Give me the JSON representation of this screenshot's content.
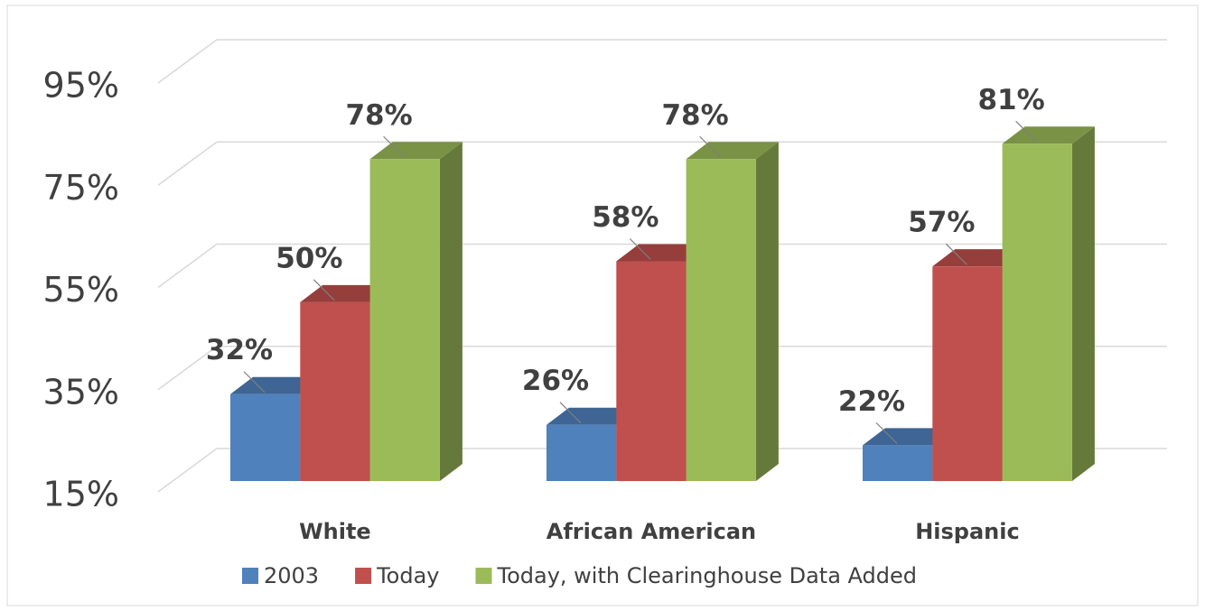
{
  "chart_data": {
    "type": "bar3d",
    "categories": [
      "White",
      "African American",
      "Hispanic"
    ],
    "series": [
      {
        "name": "2003",
        "color": "#4f81bd",
        "values": [
          32,
          26,
          22
        ],
        "value_labels": [
          "32%",
          "26%",
          "22%"
        ]
      },
      {
        "name": "Today",
        "color": "#c0504d",
        "values": [
          50,
          58,
          57
        ],
        "value_labels": [
          "50%",
          "58%",
          "57%"
        ]
      },
      {
        "name": "Today, with Clearinghouse Data Added",
        "color": "#9bbb59",
        "values": [
          78,
          78,
          81
        ],
        "value_labels": [
          "78%",
          "78%",
          "81%"
        ]
      }
    ],
    "ylim": [
      15,
      95
    ],
    "yticks": [
      {
        "value": 15,
        "label": "15%"
      },
      {
        "value": 35,
        "label": "35%"
      },
      {
        "value": 55,
        "label": "55%"
      },
      {
        "value": 75,
        "label": "75%"
      },
      {
        "value": 95,
        "label": "95%"
      }
    ],
    "grid": true,
    "legend": "bottom"
  }
}
